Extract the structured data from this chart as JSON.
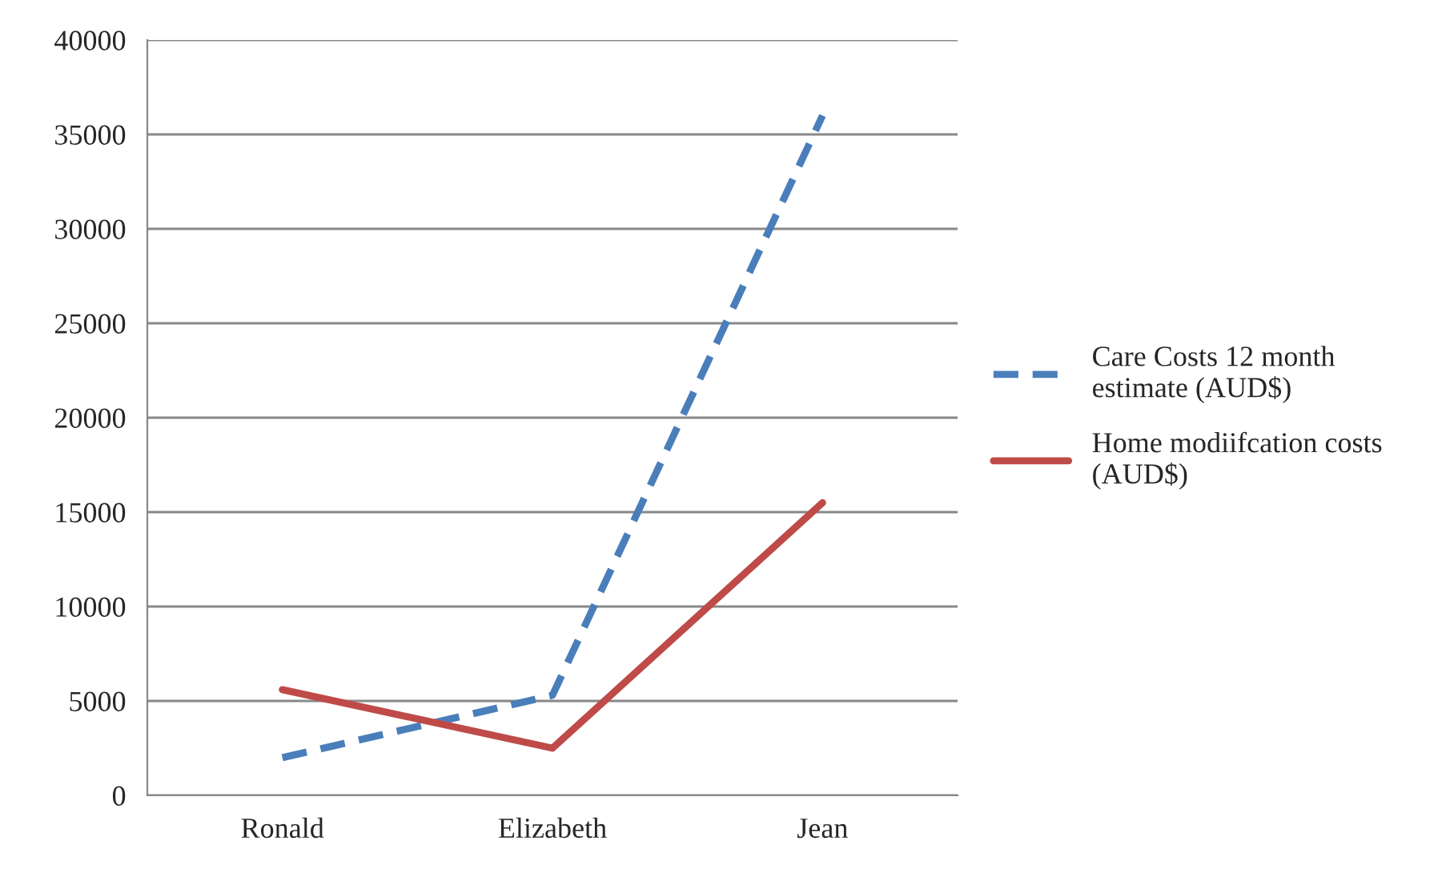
{
  "chart_data": {
    "type": "line",
    "categories": [
      "Ronald",
      "Elizabeth",
      "Jean"
    ],
    "series": [
      {
        "name": "Care Costs 12 month estimate (AUD$)",
        "color": "#4a7ebb",
        "line_style": "dashed",
        "values": [
          2000,
          5300,
          36000
        ]
      },
      {
        "name": "Home modiifcation costs (AUD$)",
        "color": "#be4b48",
        "line_style": "solid",
        "values": [
          5600,
          2500,
          15500
        ]
      }
    ],
    "ylim": [
      0,
      40000
    ],
    "yticks": [
      0,
      5000,
      10000,
      15000,
      20000,
      25000,
      30000,
      35000,
      40000
    ],
    "grid": "y",
    "legend": "right",
    "marker": "none"
  }
}
